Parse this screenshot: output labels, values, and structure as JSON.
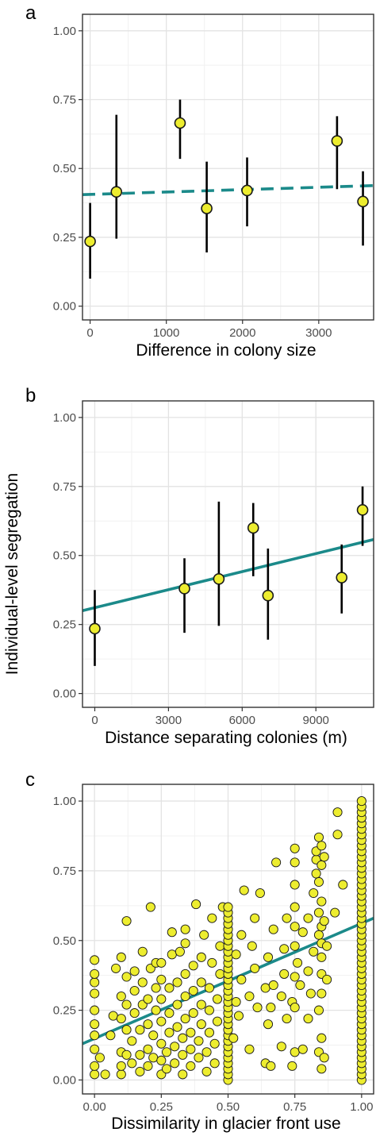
{
  "figure": {
    "shared_ylabel": "Individual-level segregation"
  },
  "colors": {
    "point_fill": "#eded2f",
    "point_stroke": "#1a1a1a",
    "trend_line": "#1b8a8a",
    "grid_major": "#e3e3e3",
    "grid_minor": "#f1f1f1",
    "panel_border": "#333333"
  },
  "chart_data": [
    {
      "panel": "a",
      "type": "scatter",
      "xlabel": "Difference in colony size",
      "ylabel": "",
      "xlim": [
        -100,
        3720
      ],
      "ylim": [
        -0.05,
        1.06
      ],
      "xticks": [
        0,
        1000,
        2000,
        3000
      ],
      "xtick_labels": [
        "0",
        "1000",
        "2000",
        "3000"
      ],
      "yticks": [
        0,
        0.25,
        0.5,
        0.75,
        1
      ],
      "ytick_labels": [
        "0.00",
        "0.25",
        "0.50",
        "0.75",
        "1.00"
      ],
      "grid": true,
      "points": [
        {
          "x": 0,
          "y": 0.235,
          "ymin": 0.1,
          "ymax": 0.375
        },
        {
          "x": 345,
          "y": 0.415,
          "ymin": 0.245,
          "ymax": 0.695
        },
        {
          "x": 1180,
          "y": 0.665,
          "ymin": 0.535,
          "ymax": 0.75
        },
        {
          "x": 1530,
          "y": 0.355,
          "ymin": 0.195,
          "ymax": 0.525
        },
        {
          "x": 2060,
          "y": 0.42,
          "ymin": 0.29,
          "ymax": 0.54
        },
        {
          "x": 3240,
          "y": 0.6,
          "ymin": 0.425,
          "ymax": 0.69
        },
        {
          "x": 3580,
          "y": 0.38,
          "ymin": 0.22,
          "ymax": 0.49
        }
      ],
      "trend": {
        "style": "dashed",
        "x": [
          -100,
          3720
        ],
        "y": [
          0.405,
          0.438
        ]
      }
    },
    {
      "panel": "b",
      "type": "scatter",
      "xlabel": "Distance separating colonies (m)",
      "ylabel": "Individual-level segregation",
      "xlim": [
        -500,
        11350
      ],
      "ylim": [
        -0.05,
        1.06
      ],
      "xticks": [
        0,
        3000,
        6000,
        9000
      ],
      "xtick_labels": [
        "0",
        "3000",
        "6000",
        "9000"
      ],
      "yticks": [
        0,
        0.25,
        0.5,
        0.75,
        1
      ],
      "ytick_labels": [
        "0.00",
        "0.25",
        "0.50",
        "0.75",
        "1.00"
      ],
      "grid": true,
      "points": [
        {
          "x": 0,
          "y": 0.235,
          "ymin": 0.1,
          "ymax": 0.375
        },
        {
          "x": 3650,
          "y": 0.38,
          "ymin": 0.22,
          "ymax": 0.49
        },
        {
          "x": 5050,
          "y": 0.415,
          "ymin": 0.245,
          "ymax": 0.695
        },
        {
          "x": 6450,
          "y": 0.6,
          "ymin": 0.425,
          "ymax": 0.69
        },
        {
          "x": 7050,
          "y": 0.355,
          "ymin": 0.195,
          "ymax": 0.525
        },
        {
          "x": 10050,
          "y": 0.42,
          "ymin": 0.29,
          "ymax": 0.54
        },
        {
          "x": 10900,
          "y": 0.665,
          "ymin": 0.535,
          "ymax": 0.75
        }
      ],
      "trend": {
        "style": "solid",
        "x": [
          -500,
          11350
        ],
        "y": [
          0.3,
          0.558
        ]
      }
    },
    {
      "panel": "c",
      "type": "scatter",
      "xlabel": "Dissimilarity in glacier front use",
      "ylabel": "",
      "xlim": [
        -0.045,
        1.045
      ],
      "ylim": [
        -0.05,
        1.06
      ],
      "xticks": [
        0,
        0.25,
        0.5,
        0.75,
        1
      ],
      "xtick_labels": [
        "0.00",
        "0.25",
        "0.50",
        "0.75",
        "1.00"
      ],
      "yticks": [
        0,
        0.25,
        0.5,
        0.75,
        1
      ],
      "ytick_labels": [
        "0.00",
        "0.25",
        "0.50",
        "0.75",
        "1.00"
      ],
      "grid": true,
      "points": [
        [
          0,
          0.02
        ],
        [
          0,
          0.05
        ],
        [
          0,
          0.11
        ],
        [
          0,
          0.16
        ],
        [
          0,
          0.2
        ],
        [
          0,
          0.25
        ],
        [
          0,
          0.31
        ],
        [
          0,
          0.35
        ],
        [
          0,
          0.38
        ],
        [
          0,
          0.43
        ],
        [
          0.02,
          0.08
        ],
        [
          0.04,
          0.02
        ],
        [
          0.06,
          0.16
        ],
        [
          0.07,
          0.23
        ],
        [
          0.08,
          0.4
        ],
        [
          0.1,
          0.02
        ],
        [
          0.1,
          0.05
        ],
        [
          0.1,
          0.1
        ],
        [
          0.1,
          0.22
        ],
        [
          0.1,
          0.3
        ],
        [
          0.1,
          0.44
        ],
        [
          0.12,
          0.09
        ],
        [
          0.12,
          0.18
        ],
        [
          0.12,
          0.27
        ],
        [
          0.12,
          0.37
        ],
        [
          0.12,
          0.57
        ],
        [
          0.14,
          0.06
        ],
        [
          0.14,
          0.14
        ],
        [
          0.15,
          0.24
        ],
        [
          0.15,
          0.32
        ],
        [
          0.15,
          0.39
        ],
        [
          0.17,
          0.03
        ],
        [
          0.17,
          0.09
        ],
        [
          0.17,
          0.18
        ],
        [
          0.18,
          0.27
        ],
        [
          0.18,
          0.35
        ],
        [
          0.18,
          0.46
        ],
        [
          0.2,
          0.05
        ],
        [
          0.2,
          0.11
        ],
        [
          0.2,
          0.2
        ],
        [
          0.2,
          0.29
        ],
        [
          0.21,
          0.4
        ],
        [
          0.21,
          0.62
        ],
        [
          0.22,
          0.08
        ],
        [
          0.22,
          0.16
        ],
        [
          0.23,
          0.25
        ],
        [
          0.23,
          0.33
        ],
        [
          0.23,
          0.42
        ],
        [
          0.25,
          0.02
        ],
        [
          0.25,
          0.07
        ],
        [
          0.25,
          0.13
        ],
        [
          0.25,
          0.21
        ],
        [
          0.25,
          0.29
        ],
        [
          0.25,
          0.36
        ],
        [
          0.25,
          0.42
        ],
        [
          0.27,
          0.04
        ],
        [
          0.27,
          0.1
        ],
        [
          0.28,
          0.17
        ],
        [
          0.28,
          0.24
        ],
        [
          0.28,
          0.33
        ],
        [
          0.29,
          0.45
        ],
        [
          0.29,
          0.53
        ],
        [
          0.3,
          0.06
        ],
        [
          0.3,
          0.12
        ],
        [
          0.31,
          0.19
        ],
        [
          0.31,
          0.27
        ],
        [
          0.31,
          0.35
        ],
        [
          0.32,
          0.46
        ],
        [
          0.33,
          0.02
        ],
        [
          0.33,
          0.09
        ],
        [
          0.33,
          0.15
        ],
        [
          0.34,
          0.22
        ],
        [
          0.34,
          0.3
        ],
        [
          0.34,
          0.38
        ],
        [
          0.34,
          0.49
        ],
        [
          0.34,
          0.54
        ],
        [
          0.36,
          0.05
        ],
        [
          0.36,
          0.11
        ],
        [
          0.36,
          0.17
        ],
        [
          0.37,
          0.24
        ],
        [
          0.37,
          0.32
        ],
        [
          0.37,
          0.41
        ],
        [
          0.38,
          0.63
        ],
        [
          0.39,
          0.08
        ],
        [
          0.39,
          0.14
        ],
        [
          0.4,
          0.2
        ],
        [
          0.4,
          0.27
        ],
        [
          0.4,
          0.35
        ],
        [
          0.4,
          0.44
        ],
        [
          0.41,
          0.52
        ],
        [
          0.42,
          0.03
        ],
        [
          0.42,
          0.1
        ],
        [
          0.43,
          0.17
        ],
        [
          0.43,
          0.25
        ],
        [
          0.43,
          0.33
        ],
        [
          0.44,
          0.42
        ],
        [
          0.44,
          0.58
        ],
        [
          0.45,
          0.06
        ],
        [
          0.45,
          0.13
        ],
        [
          0.46,
          0.21
        ],
        [
          0.46,
          0.29
        ],
        [
          0.47,
          0.38
        ],
        [
          0.47,
          0.48
        ],
        [
          0.48,
          0.62
        ],
        [
          0.5,
          0.0
        ],
        [
          0.5,
          0.02
        ],
        [
          0.5,
          0.04
        ],
        [
          0.5,
          0.06
        ],
        [
          0.5,
          0.08
        ],
        [
          0.5,
          0.1
        ],
        [
          0.5,
          0.12
        ],
        [
          0.5,
          0.14
        ],
        [
          0.5,
          0.16
        ],
        [
          0.5,
          0.18
        ],
        [
          0.5,
          0.2
        ],
        [
          0.5,
          0.22
        ],
        [
          0.5,
          0.24
        ],
        [
          0.5,
          0.26
        ],
        [
          0.5,
          0.28
        ],
        [
          0.5,
          0.3
        ],
        [
          0.5,
          0.32
        ],
        [
          0.5,
          0.34
        ],
        [
          0.5,
          0.36
        ],
        [
          0.5,
          0.38
        ],
        [
          0.5,
          0.4
        ],
        [
          0.5,
          0.42
        ],
        [
          0.5,
          0.44
        ],
        [
          0.5,
          0.46
        ],
        [
          0.5,
          0.48
        ],
        [
          0.5,
          0.5
        ],
        [
          0.5,
          0.52
        ],
        [
          0.5,
          0.54
        ],
        [
          0.5,
          0.56
        ],
        [
          0.5,
          0.58
        ],
        [
          0.5,
          0.6
        ],
        [
          0.5,
          0.62
        ],
        [
          0.52,
          0.15
        ],
        [
          0.53,
          0.28
        ],
        [
          0.53,
          0.45
        ],
        [
          0.54,
          0.23
        ],
        [
          0.55,
          0.36
        ],
        [
          0.55,
          0.52
        ],
        [
          0.56,
          0.68
        ],
        [
          0.58,
          0.11
        ],
        [
          0.58,
          0.3
        ],
        [
          0.59,
          0.48
        ],
        [
          0.6,
          0.4
        ],
        [
          0.6,
          0.58
        ],
        [
          0.61,
          0.26
        ],
        [
          0.62,
          0.67
        ],
        [
          0.64,
          0.06
        ],
        [
          0.64,
          0.33
        ],
        [
          0.65,
          0.2
        ],
        [
          0.65,
          0.44
        ],
        [
          0.66,
          0.05
        ],
        [
          0.66,
          0.26
        ],
        [
          0.67,
          0.34
        ],
        [
          0.67,
          0.54
        ],
        [
          0.68,
          0.78
        ],
        [
          0.7,
          0.12
        ],
        [
          0.7,
          0.3
        ],
        [
          0.71,
          0.38
        ],
        [
          0.71,
          0.47
        ],
        [
          0.72,
          0.22
        ],
        [
          0.72,
          0.58
        ],
        [
          0.74,
          0.05
        ],
        [
          0.74,
          0.28
        ],
        [
          0.75,
          0.1
        ],
        [
          0.75,
          0.26
        ],
        [
          0.75,
          0.37
        ],
        [
          0.75,
          0.48
        ],
        [
          0.75,
          0.55
        ],
        [
          0.75,
          0.62
        ],
        [
          0.75,
          0.7
        ],
        [
          0.75,
          0.78
        ],
        [
          0.75,
          0.83
        ],
        [
          0.76,
          0.42
        ],
        [
          0.77,
          0.34
        ],
        [
          0.78,
          0.11
        ],
        [
          0.78,
          0.53
        ],
        [
          0.8,
          0.22
        ],
        [
          0.8,
          0.39
        ],
        [
          0.8,
          0.58
        ],
        [
          0.81,
          0.31
        ],
        [
          0.82,
          0.46
        ],
        [
          0.82,
          0.67
        ],
        [
          0.83,
          0.74
        ],
        [
          0.83,
          0.79
        ],
        [
          0.83,
          0.82
        ],
        [
          0.84,
          0.1
        ],
        [
          0.84,
          0.25
        ],
        [
          0.84,
          0.52
        ],
        [
          0.84,
          0.6
        ],
        [
          0.84,
          0.71
        ],
        [
          0.84,
          0.87
        ],
        [
          0.85,
          0.04
        ],
        [
          0.85,
          0.15
        ],
        [
          0.85,
          0.31
        ],
        [
          0.85,
          0.38
        ],
        [
          0.85,
          0.44
        ],
        [
          0.85,
          0.49
        ],
        [
          0.85,
          0.55
        ],
        [
          0.85,
          0.64
        ],
        [
          0.85,
          0.77
        ],
        [
          0.85,
          0.84
        ],
        [
          0.86,
          0.08
        ],
        [
          0.86,
          0.57
        ],
        [
          0.86,
          0.8
        ],
        [
          0.87,
          0.36
        ],
        [
          0.87,
          0.48
        ],
        [
          0.9,
          0.6
        ],
        [
          0.91,
          0.96
        ],
        [
          0.91,
          0.88
        ],
        [
          0.93,
          0.7
        ],
        [
          1,
          0.0
        ],
        [
          1,
          0.02
        ],
        [
          1,
          0.04
        ],
        [
          1,
          0.06
        ],
        [
          1,
          0.08
        ],
        [
          1,
          0.1
        ],
        [
          1,
          0.12
        ],
        [
          1,
          0.14
        ],
        [
          1,
          0.16
        ],
        [
          1,
          0.18
        ],
        [
          1,
          0.2
        ],
        [
          1,
          0.22
        ],
        [
          1,
          0.24
        ],
        [
          1,
          0.26
        ],
        [
          1,
          0.28
        ],
        [
          1,
          0.3
        ],
        [
          1,
          0.32
        ],
        [
          1,
          0.34
        ],
        [
          1,
          0.36
        ],
        [
          1,
          0.38
        ],
        [
          1,
          0.4
        ],
        [
          1,
          0.42
        ],
        [
          1,
          0.44
        ],
        [
          1,
          0.46
        ],
        [
          1,
          0.48
        ],
        [
          1,
          0.5
        ],
        [
          1,
          0.52
        ],
        [
          1,
          0.54
        ],
        [
          1,
          0.56
        ],
        [
          1,
          0.58
        ],
        [
          1,
          0.6
        ],
        [
          1,
          0.62
        ],
        [
          1,
          0.64
        ],
        [
          1,
          0.66
        ],
        [
          1,
          0.68
        ],
        [
          1,
          0.7
        ],
        [
          1,
          0.72
        ],
        [
          1,
          0.74
        ],
        [
          1,
          0.76
        ],
        [
          1,
          0.78
        ],
        [
          1,
          0.8
        ],
        [
          1,
          0.82
        ],
        [
          1,
          0.84
        ],
        [
          1,
          0.86
        ],
        [
          1,
          0.88
        ],
        [
          1,
          0.9
        ],
        [
          1,
          0.92
        ],
        [
          1,
          0.94
        ],
        [
          1,
          0.96
        ],
        [
          1,
          0.98
        ],
        [
          1,
          1.0
        ]
      ],
      "trend": {
        "style": "solid",
        "x": [
          -0.045,
          1.045
        ],
        "y": [
          0.13,
          0.58
        ]
      }
    }
  ]
}
